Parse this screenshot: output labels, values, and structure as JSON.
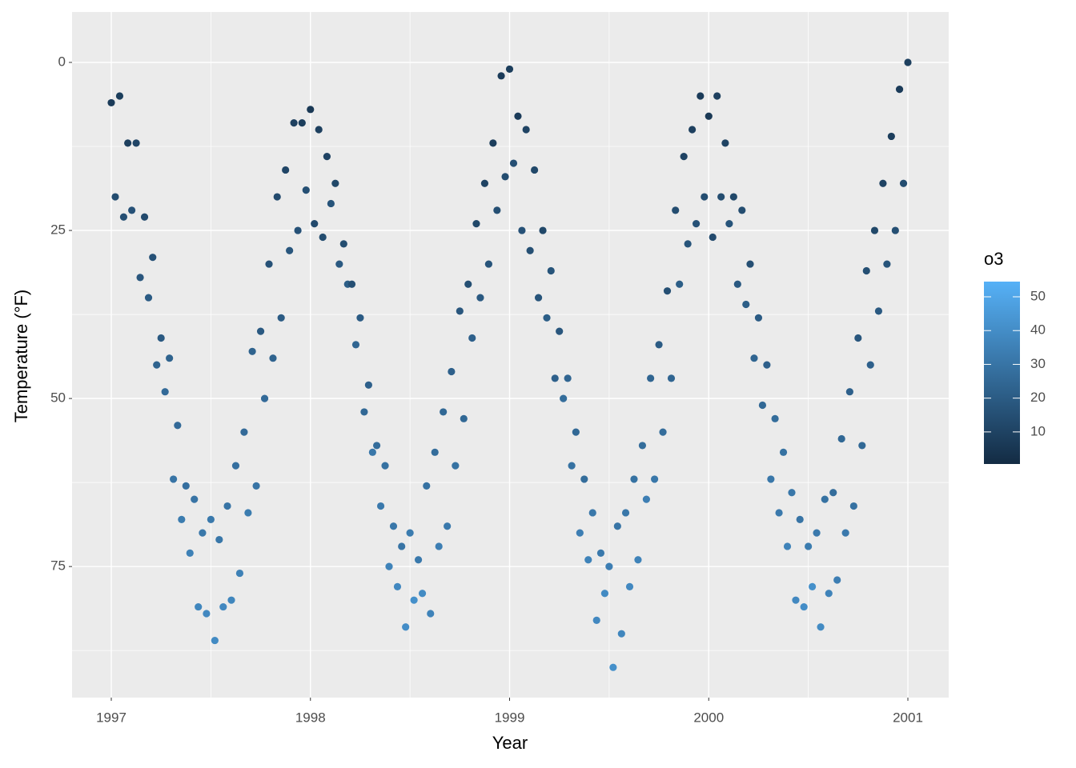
{
  "chart_data": {
    "type": "scatter",
    "x_label": "Year",
    "y_label": "Temperature (°F)",
    "color_label": "o3",
    "xlim": [
      1996.803,
      2001.205
    ],
    "xticks": [
      1997,
      1998,
      1999,
      2000,
      2001
    ],
    "xminor": [
      1997.5,
      1998.5,
      1999.5,
      2000.5
    ],
    "ylim": [
      -7.5,
      94.5
    ],
    "y_reversed": true,
    "yticks": [
      0,
      25,
      50,
      75
    ],
    "yminor": [
      12.5,
      37.5,
      62.5,
      87.5
    ],
    "grid": true,
    "panel_color": "#ebebeb",
    "color_low": "#132b43",
    "color_high": "#56b1f7",
    "color_lim": [
      0.5,
      54.5
    ],
    "color_ticks": [
      10,
      20,
      30,
      40,
      50
    ],
    "x": [
      1997.0,
      1997.02,
      1997.042,
      1997.062,
      1997.083,
      1997.103,
      1997.125,
      1997.145,
      1997.167,
      1997.187,
      1997.208,
      1997.228,
      1997.25,
      1997.27,
      1997.292,
      1997.312,
      1997.333,
      1997.353,
      1997.375,
      1997.395,
      1997.417,
      1997.437,
      1997.458,
      1997.478,
      1997.5,
      1997.52,
      1997.542,
      1997.562,
      1997.583,
      1997.603,
      1997.625,
      1997.645,
      1997.667,
      1997.687,
      1997.708,
      1997.728,
      1997.75,
      1997.77,
      1997.792,
      1997.812,
      1997.833,
      1997.853,
      1997.875,
      1997.895,
      1997.917,
      1997.937,
      1997.958,
      1997.978,
      1998.0,
      1998.02,
      1998.042,
      1998.062,
      1998.083,
      1998.103,
      1998.125,
      1998.145,
      1998.167,
      1998.187,
      1998.208,
      1998.228,
      1998.25,
      1998.27,
      1998.292,
      1998.312,
      1998.333,
      1998.353,
      1998.375,
      1998.395,
      1998.417,
      1998.437,
      1998.458,
      1998.478,
      1998.5,
      1998.52,
      1998.542,
      1998.562,
      1998.583,
      1998.603,
      1998.625,
      1998.645,
      1998.667,
      1998.687,
      1998.708,
      1998.728,
      1998.75,
      1998.77,
      1998.792,
      1998.812,
      1998.833,
      1998.853,
      1998.875,
      1998.895,
      1998.917,
      1998.937,
      1998.958,
      1998.978,
      1999.0,
      1999.02,
      1999.042,
      1999.062,
      1999.083,
      1999.103,
      1999.125,
      1999.145,
      1999.167,
      1999.187,
      1999.208,
      1999.228,
      1999.25,
      1999.27,
      1999.292,
      1999.312,
      1999.333,
      1999.353,
      1999.375,
      1999.395,
      1999.417,
      1999.437,
      1999.458,
      1999.478,
      1999.5,
      1999.52,
      1999.542,
      1999.562,
      1999.583,
      1999.603,
      1999.625,
      1999.645,
      1999.667,
      1999.687,
      1999.708,
      1999.728,
      1999.75,
      1999.77,
      1999.792,
      1999.812,
      1999.833,
      1999.853,
      1999.875,
      1999.895,
      1999.917,
      1999.937,
      1999.958,
      1999.978,
      2000.0,
      2000.02,
      2000.042,
      2000.062,
      2000.083,
      2000.103,
      2000.125,
      2000.145,
      2000.167,
      2000.187,
      2000.208,
      2000.228,
      2000.25,
      2000.27,
      2000.292,
      2000.312,
      2000.333,
      2000.353,
      2000.375,
      2000.395,
      2000.417,
      2000.437,
      2000.458,
      2000.478,
      2000.5,
      2000.52,
      2000.542,
      2000.562,
      2000.583,
      2000.603,
      2000.625,
      2000.645,
      2000.667,
      2000.687,
      2000.708,
      2000.728,
      2000.75,
      2000.77,
      2000.792,
      2000.812,
      2000.833,
      2000.853,
      2000.875,
      2000.895,
      2000.917,
      2000.937,
      2000.958,
      2000.978,
      2001.0
    ],
    "values": [
      6,
      20,
      5,
      23,
      12,
      22,
      12,
      32,
      23,
      35,
      29,
      45,
      41,
      49,
      44,
      62,
      54,
      68,
      63,
      73,
      65,
      81,
      70,
      82,
      68,
      86,
      71,
      81,
      66,
      80,
      60,
      76,
      55,
      67,
      43,
      63,
      40,
      50,
      30,
      44,
      20,
      38,
      16,
      28,
      9,
      25,
      9,
      19,
      7,
      24,
      10,
      26,
      14,
      21,
      18,
      30,
      27,
      33,
      33,
      42,
      38,
      52,
      48,
      58,
      57,
      66,
      60,
      75,
      69,
      78,
      72,
      84,
      70,
      80,
      74,
      79,
      63,
      82,
      58,
      72,
      52,
      69,
      46,
      60,
      37,
      53,
      33,
      41,
      24,
      35,
      18,
      30,
      12,
      22,
      2,
      17,
      1,
      15,
      8,
      25,
      10,
      28,
      16,
      35,
      25,
      38,
      31,
      47,
      40,
      50,
      47,
      60,
      55,
      70,
      62,
      74,
      67,
      83,
      73,
      79,
      75,
      90,
      69,
      85,
      67,
      78,
      62,
      74,
      57,
      65,
      47,
      62,
      42,
      55,
      34,
      47,
      22,
      33,
      14,
      27,
      10,
      24,
      5,
      20,
      8,
      26,
      5,
      20,
      12,
      24,
      20,
      33,
      22,
      36,
      30,
      44,
      38,
      51,
      45,
      62,
      53,
      67,
      58,
      72,
      64,
      80,
      68,
      81,
      72,
      78,
      70,
      84,
      65,
      79,
      64,
      77,
      56,
      70,
      49,
      66,
      41,
      57,
      31,
      45,
      25,
      37,
      18,
      30,
      11,
      25,
      4,
      18,
      0
    ],
    "o3": [
      7,
      14,
      8,
      15,
      9,
      16,
      11,
      18,
      13,
      20,
      16,
      23,
      19,
      26,
      23,
      30,
      26,
      33,
      28,
      35,
      30,
      37,
      31,
      38,
      32,
      39,
      31,
      38,
      30,
      37,
      28,
      35,
      26,
      33,
      23,
      30,
      19,
      26,
      16,
      23,
      13,
      20,
      11,
      18,
      9,
      16,
      8,
      15,
      6,
      13,
      9,
      14,
      10,
      17,
      12,
      19,
      14,
      21,
      15,
      24,
      20,
      25,
      22,
      31,
      27,
      32,
      29,
      36,
      31,
      38,
      30,
      40,
      33,
      41,
      32,
      39,
      29,
      36,
      27,
      34,
      25,
      32,
      22,
      29,
      18,
      25,
      15,
      22,
      12,
      19,
      10,
      17,
      8,
      15,
      7,
      14,
      8,
      15,
      7,
      16,
      10,
      15,
      12,
      17,
      12,
      21,
      17,
      22,
      18,
      27,
      24,
      29,
      25,
      34,
      27,
      36,
      31,
      38,
      32,
      39,
      34,
      41,
      30,
      37,
      31,
      38,
      29,
      36,
      27,
      34,
      24,
      31,
      20,
      27,
      15,
      24,
      14,
      21,
      10,
      17,
      9,
      16,
      7,
      14,
      6,
      13,
      9,
      14,
      10,
      17,
      12,
      19,
      14,
      21,
      15,
      24,
      20,
      25,
      22,
      31,
      27,
      32,
      29,
      36,
      31,
      38,
      30,
      40,
      33,
      41,
      32,
      39,
      29,
      36,
      27,
      34,
      25,
      32,
      22,
      29,
      18,
      25,
      15,
      22,
      12,
      19,
      10,
      17,
      8,
      15,
      7,
      14,
      9
    ]
  }
}
